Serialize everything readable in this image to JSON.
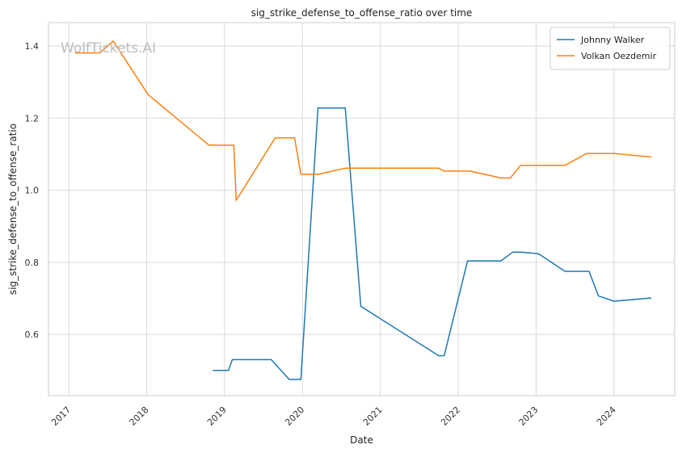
{
  "chart_data": {
    "type": "line",
    "title": "sig_strike_defense_to_offense_ratio over time",
    "xlabel": "Date",
    "ylabel": "sig_strike_defense_to_offense_ratio",
    "watermark": "WolfTickets.AI",
    "x_ticks": [
      "2017",
      "2018",
      "2019",
      "2020",
      "2021",
      "2022",
      "2023",
      "2024"
    ],
    "y_ticks": [
      "0.6",
      "0.8",
      "1.0",
      "1.2",
      "1.4"
    ],
    "xlim": [
      2016.74,
      2024.78
    ],
    "ylim": [
      0.43,
      1.465
    ],
    "grid": true,
    "legend_position": "top-right",
    "series": [
      {
        "name": "Johnny Walker",
        "color": "#1f77b4",
        "points": [
          [
            2018.85,
            0.5
          ],
          [
            2019.05,
            0.5
          ],
          [
            2019.1,
            0.53
          ],
          [
            2019.6,
            0.53
          ],
          [
            2019.83,
            0.475
          ],
          [
            2019.98,
            0.475
          ],
          [
            2020.2,
            1.228
          ],
          [
            2020.55,
            1.228
          ],
          [
            2020.75,
            0.678
          ],
          [
            2021.75,
            0.541
          ],
          [
            2021.82,
            0.541
          ],
          [
            2022.12,
            0.804
          ],
          [
            2022.55,
            0.804
          ],
          [
            2022.7,
            0.828
          ],
          [
            2022.8,
            0.828
          ],
          [
            2023.03,
            0.824
          ],
          [
            2023.37,
            0.775
          ],
          [
            2023.68,
            0.775
          ],
          [
            2023.8,
            0.707
          ],
          [
            2024.0,
            0.692
          ],
          [
            2024.48,
            0.701
          ]
        ]
      },
      {
        "name": "Volkan Oezdemir",
        "color": "#ff7f0e",
        "points": [
          [
            2017.08,
            1.381
          ],
          [
            2017.4,
            1.381
          ],
          [
            2017.57,
            1.414
          ],
          [
            2018.02,
            1.265
          ],
          [
            2018.8,
            1.125
          ],
          [
            2019.12,
            1.125
          ],
          [
            2019.15,
            0.972
          ],
          [
            2019.65,
            1.145
          ],
          [
            2019.9,
            1.145
          ],
          [
            2019.98,
            1.044
          ],
          [
            2020.2,
            1.044
          ],
          [
            2020.55,
            1.061
          ],
          [
            2021.75,
            1.061
          ],
          [
            2021.82,
            1.053
          ],
          [
            2022.15,
            1.053
          ],
          [
            2022.55,
            1.034
          ],
          [
            2022.67,
            1.034
          ],
          [
            2022.8,
            1.069
          ],
          [
            2023.37,
            1.069
          ],
          [
            2023.65,
            1.102
          ],
          [
            2024.0,
            1.102
          ],
          [
            2024.48,
            1.092
          ]
        ]
      }
    ]
  }
}
